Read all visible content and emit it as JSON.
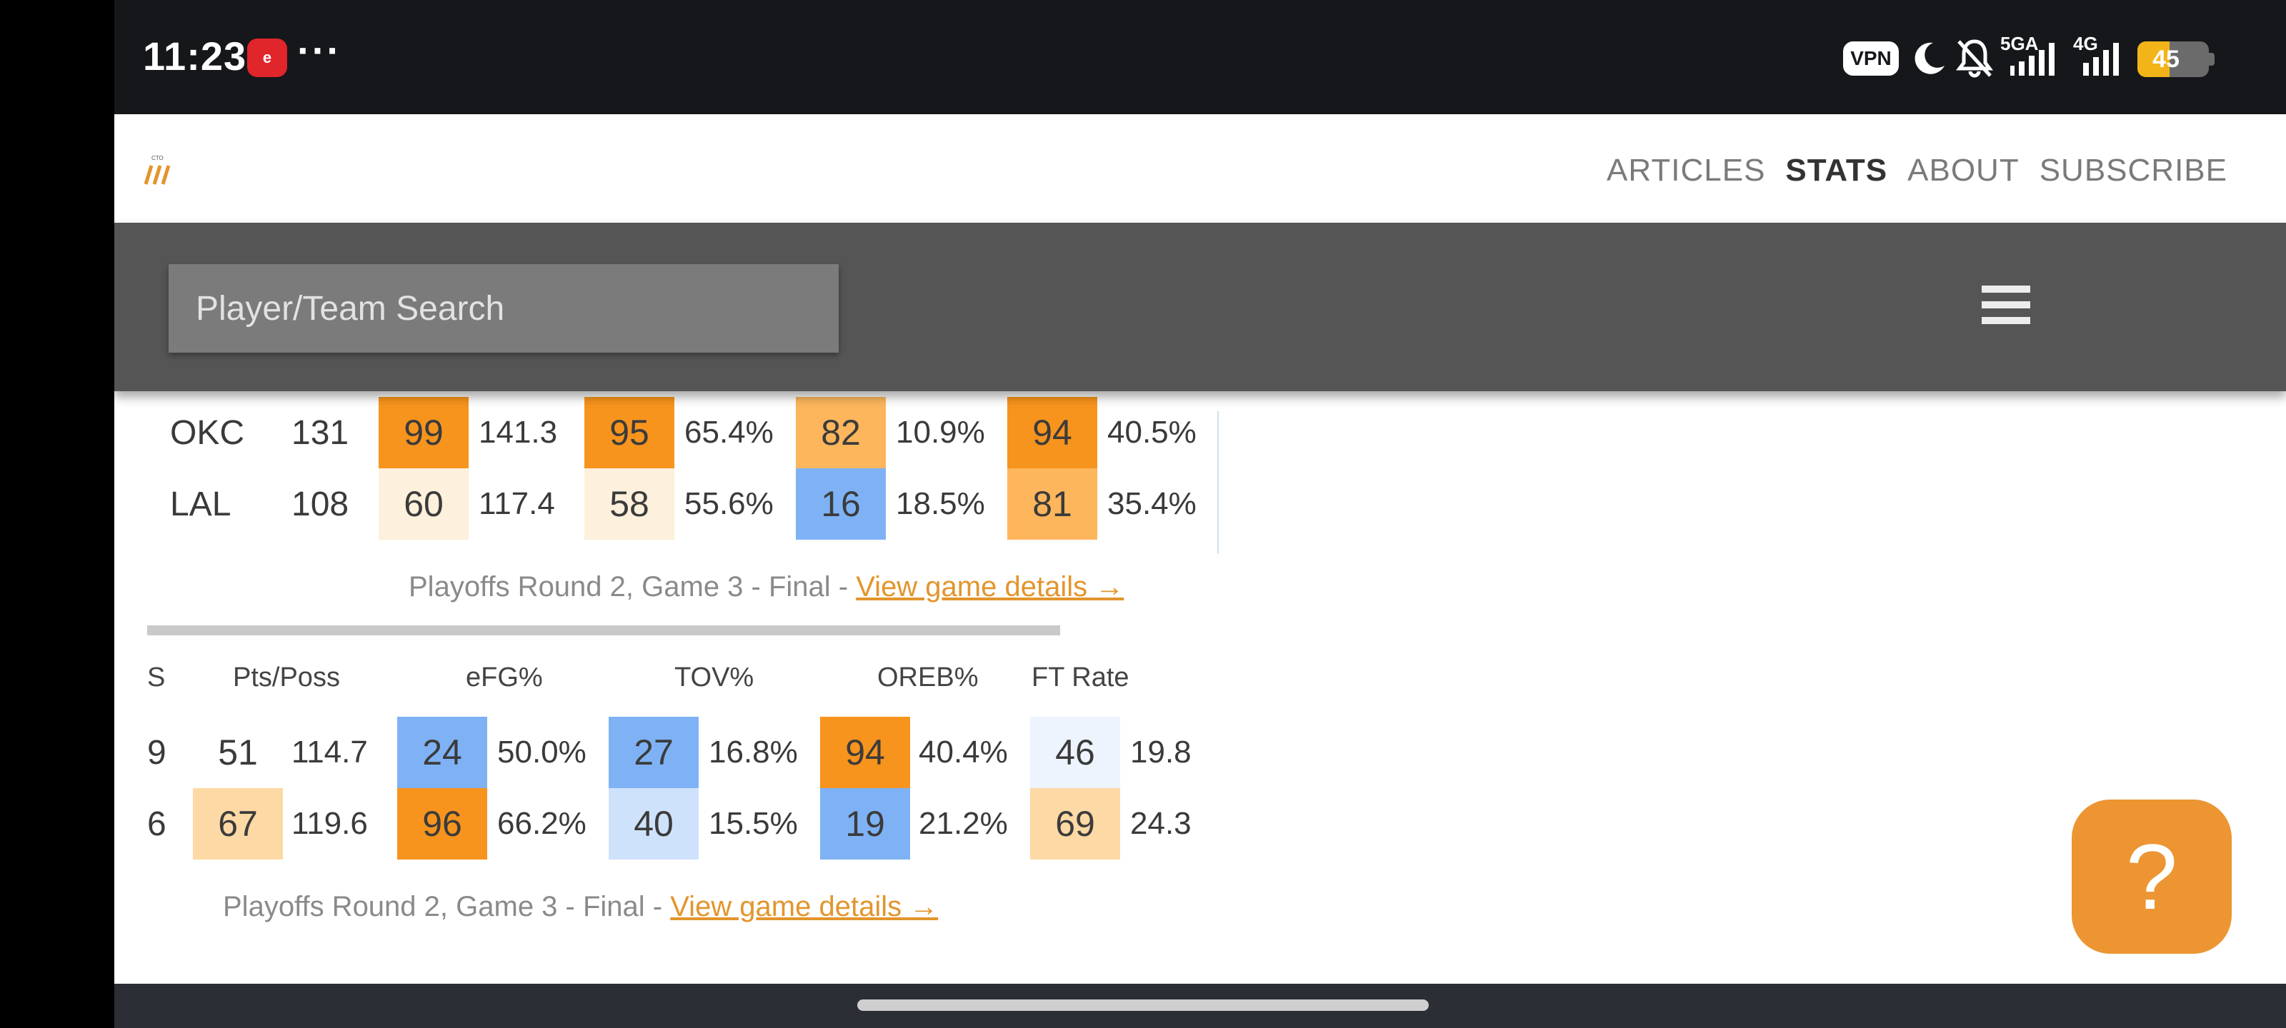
{
  "status_bar": {
    "time": "11:23",
    "app_icon_text": "e",
    "more": "···",
    "vpn": "VPN",
    "net1": "5GA",
    "net2": "4G",
    "battery": "45",
    "battery_level": 0.45,
    "icons": [
      "moon-icon",
      "bell-off-icon",
      "signal-icon",
      "signal-icon",
      "battery-icon"
    ]
  },
  "header": {
    "nav": [
      "ARTICLES",
      "STATS",
      "ABOUT",
      "SUBSCRIBE"
    ],
    "active_nav": "STATS"
  },
  "search": {
    "placeholder": "Player/Team Search"
  },
  "game1": {
    "rows": [
      {
        "team": "OKC",
        "pts": "131",
        "c1": "99",
        "v1": "141.3",
        "c2": "95",
        "v2": "65.4%",
        "c3": "82",
        "v3": "10.9%",
        "c4": "94",
        "v4": "40.5%"
      },
      {
        "team": "LAL",
        "pts": "108",
        "c1": "60",
        "v1": "117.4",
        "c2": "58",
        "v2": "55.6%",
        "c3": "16",
        "v3": "18.5%",
        "c4": "81",
        "v4": "35.4%"
      }
    ],
    "caption": "Playoffs Round 2, Game 3 - Final - ",
    "link": "View game details →"
  },
  "game2": {
    "headers": [
      "S",
      "Pts/Poss",
      "eFG%",
      "TOV%",
      "OREB%",
      "FT Rate"
    ],
    "rows": [
      {
        "s": "9",
        "c1": "51",
        "v1": "114.7",
        "c2": "24",
        "v2": "50.0%",
        "c3": "27",
        "v3": "16.8%",
        "c4": "94",
        "v4": "40.4%",
        "c5": "46",
        "v5": "19.8"
      },
      {
        "s": "6",
        "c1": "67",
        "v1": "119.6",
        "c2": "96",
        "v2": "66.2%",
        "c3": "40",
        "v3": "15.5%",
        "c4": "19",
        "v4": "21.2%",
        "c5": "69",
        "v5": "24.3"
      }
    ],
    "caption": "Playoffs Round 2, Game 3 - Final - ",
    "link": "View game details →"
  },
  "help": {
    "label": "?"
  },
  "colors": {
    "orange_strong": "#f7941d",
    "orange_mid": "#fdb65c",
    "orange_light": "#fdd9a5",
    "orange_pale": "#fdf0dc",
    "blue_strong": "#7fb2f5",
    "blue_light": "#cfe2fb",
    "blue_pale": "#eef4fd",
    "link": "#e2952d"
  }
}
